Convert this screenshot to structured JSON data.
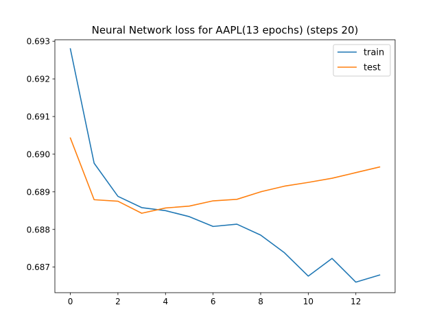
{
  "chart_data": {
    "type": "line",
    "title": "Neural Network loss for AAPL(13 epochs) (steps 20)",
    "xlabel": "",
    "ylabel": "",
    "x": [
      0,
      1,
      2,
      3,
      4,
      5,
      6,
      7,
      8,
      9,
      10,
      11,
      12,
      13
    ],
    "xlim": [
      -0.65,
      13.65
    ],
    "ylim": [
      0.68632,
      0.69304
    ],
    "xticks": [
      0,
      2,
      4,
      6,
      8,
      10,
      12
    ],
    "yticks": [
      0.687,
      0.688,
      0.689,
      0.69,
      0.691,
      0.692,
      0.693
    ],
    "ytick_labels": [
      "0.687",
      "0.688",
      "0.689",
      "0.690",
      "0.691",
      "0.692",
      "0.693"
    ],
    "grid": false,
    "legend_position": "top-right",
    "series": [
      {
        "name": "train",
        "color": "#1f77b4",
        "values": [
          0.6928,
          0.68976,
          0.68888,
          0.68858,
          0.6885,
          0.68834,
          0.68808,
          0.68814,
          0.68785,
          0.68738,
          0.68676,
          0.68723,
          0.6866,
          0.68679
        ]
      },
      {
        "name": "test",
        "color": "#ff7f0e",
        "values": [
          0.69043,
          0.68879,
          0.68875,
          0.68843,
          0.68857,
          0.68862,
          0.68876,
          0.6888,
          0.689,
          0.68915,
          0.68925,
          0.68936,
          0.68951,
          0.68966
        ]
      }
    ]
  }
}
